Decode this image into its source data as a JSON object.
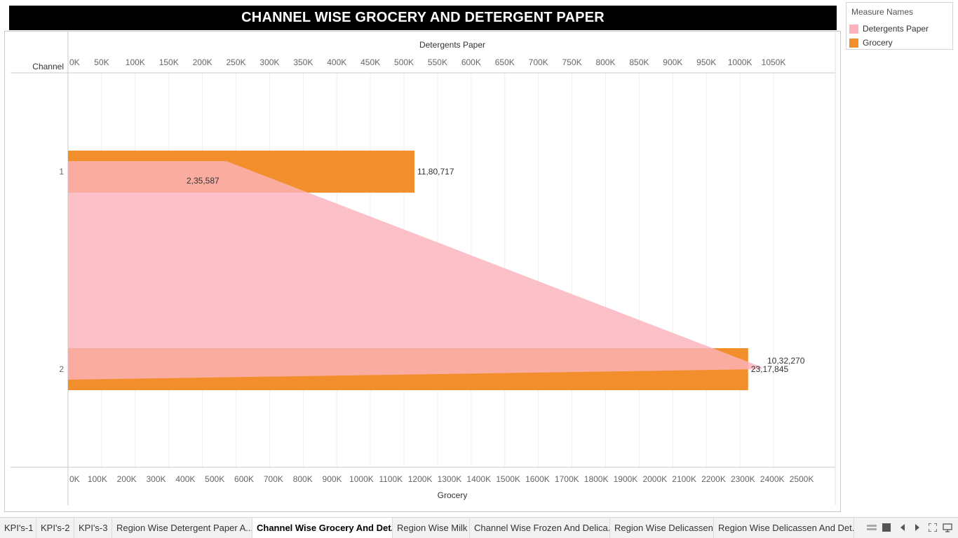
{
  "title": "CHANNEL WISE GROCERY AND DETERGENT PAPER",
  "legend": {
    "title": "Measure Names",
    "items": [
      {
        "label": "Detergents Paper",
        "color": "#fbb2bc"
      },
      {
        "label": "Grocery",
        "color": "#f28e2b"
      }
    ]
  },
  "chart_data": {
    "type": "bar",
    "dimension_label": "Channel",
    "categories": [
      "1",
      "2"
    ],
    "series": [
      {
        "name": "Grocery",
        "values": [
          1180717,
          2317845
        ],
        "labels": [
          "11,80,717",
          "23,17,845"
        ],
        "color": "#f28e2b",
        "axis": "bottom"
      },
      {
        "name": "Detergents Paper",
        "values": [
          235587,
          1032270
        ],
        "labels": [
          "2,35,587",
          "10,32,270"
        ],
        "color": "#fbb2bc",
        "axis": "top",
        "mark": "area"
      }
    ],
    "top_axis": {
      "label": "Detergents Paper",
      "range": [
        0,
        1050000
      ],
      "tick_labels": [
        "0K",
        "50K",
        "100K",
        "150K",
        "200K",
        "250K",
        "300K",
        "350K",
        "400K",
        "450K",
        "500K",
        "550K",
        "600K",
        "650K",
        "700K",
        "750K",
        "800K",
        "850K",
        "900K",
        "950K",
        "1000K",
        "1050K"
      ]
    },
    "bottom_axis": {
      "label": "Grocery",
      "range": [
        0,
        2500000
      ],
      "tick_labels": [
        "0K",
        "100K",
        "200K",
        "300K",
        "400K",
        "500K",
        "600K",
        "700K",
        "800K",
        "900K",
        "1000K",
        "1100K",
        "1200K",
        "1300K",
        "1400K",
        "1500K",
        "1600K",
        "1700K",
        "1800K",
        "1900K",
        "2000K",
        "2100K",
        "2200K",
        "2300K",
        "2400K",
        "2500K"
      ]
    },
    "grid": true
  },
  "tabs": [
    {
      "label": "KPI's-1",
      "active": false
    },
    {
      "label": "KPI's-2",
      "active": false
    },
    {
      "label": "KPI's-3",
      "active": false
    },
    {
      "label": "Region Wise Detergent Paper A...",
      "active": false
    },
    {
      "label": "Channel Wise Grocery And Det...",
      "active": true
    },
    {
      "label": "Region Wise Milk",
      "active": false
    },
    {
      "label": "Channel Wise Frozen And Delica...",
      "active": false
    },
    {
      "label": "Region Wise Delicassen",
      "active": false
    },
    {
      "label": "Region Wise Delicassen And Det...",
      "active": false
    }
  ],
  "nav_icons": [
    "filmstrip-icon",
    "grid-icon",
    "prev-icon",
    "next-icon",
    "fullscreen-icon",
    "present-icon"
  ]
}
